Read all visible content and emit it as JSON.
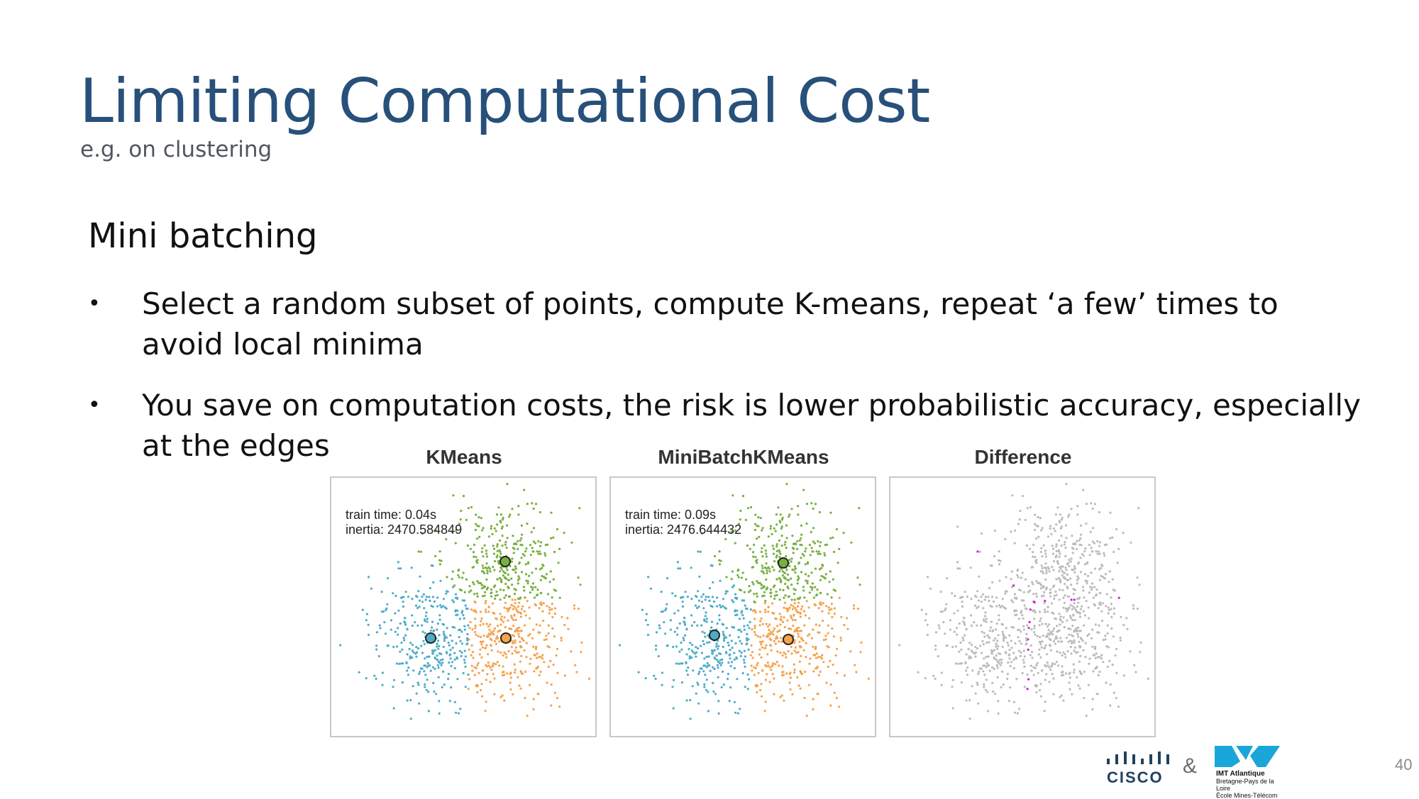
{
  "slide": {
    "title": "Limiting Computational Cost",
    "subtitle": "e.g. on clustering",
    "section_heading": "Mini batching",
    "bullets": [
      "Select a random subset of points, compute K-means, repeat ‘a few’ times to avoid local minima",
      "You save on computation costs, the risk is lower probabilistic accuracy, especially at the edges"
    ],
    "bullet_symbol": "•",
    "page_number": "40"
  },
  "figure": {
    "panels": [
      {
        "title": "KMeans",
        "train_time": "train time: 0.04s",
        "inertia": "inertia: 2470.584849"
      },
      {
        "title": "MiniBatchKMeans",
        "train_time": "train time: 0.09s",
        "inertia": "inertia: 2476.644432"
      },
      {
        "title": "Difference",
        "train_time": "",
        "inertia": ""
      }
    ],
    "cluster_colors": {
      "cluster_1": "#4eacc6",
      "cluster_2": "#77b040",
      "cluster_3": "#f5a24e",
      "same": "#bbbbbb",
      "different": "#d020d0"
    }
  },
  "footer": {
    "cisco_logo_text": "CISCO",
    "ampersand": "&",
    "imt_name": "IMT Atlantique",
    "imt_line2": "Bretagne-Pays de la Loire",
    "imt_line3": "École Mines-Télécom"
  }
}
